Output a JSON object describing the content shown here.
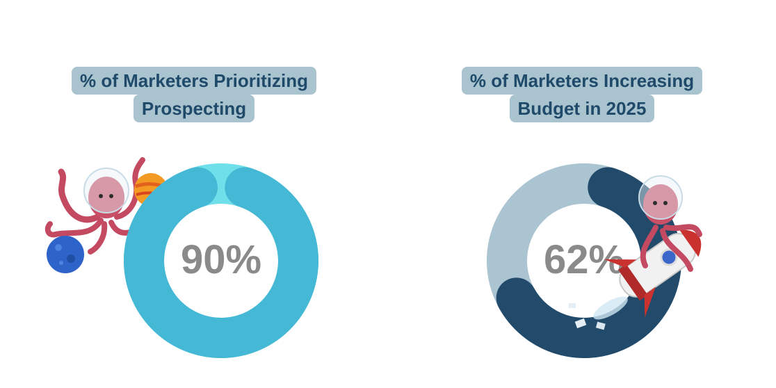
{
  "chart_data": [
    {
      "type": "pie",
      "style": "donut",
      "title_lines": [
        "% of Marketers Prioritizing",
        "Prospecting"
      ],
      "value": 90,
      "label": "90%",
      "colors": {
        "value": "#45b8d6",
        "remainder": "#6fe0ea"
      }
    },
    {
      "type": "pie",
      "style": "donut",
      "title_lines": [
        "% of Marketers Increasing",
        "Budget in 2025"
      ],
      "value": 62,
      "label": "62%",
      "colors": {
        "value": "#224a6b",
        "remainder": "#aac4d1"
      }
    }
  ],
  "decorations": {
    "left": [
      "octopus-astronaut-icon",
      "orange-planet-icon",
      "blue-planet-icon"
    ],
    "right": [
      "octopus-astronaut-icon",
      "rocket-icon"
    ]
  }
}
